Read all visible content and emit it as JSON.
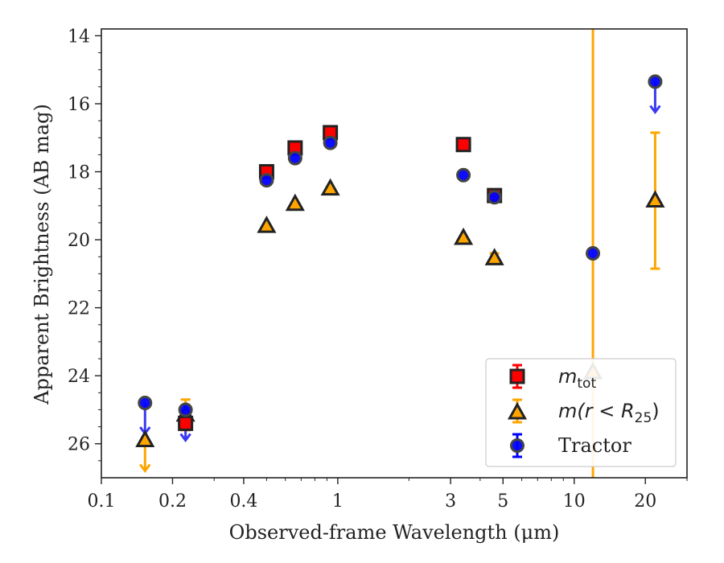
{
  "chart_data": {
    "type": "scatter",
    "xscale": "log",
    "yscale": "linear",
    "yaxis_inverted": true,
    "xlim": [
      0.1,
      30
    ],
    "ylim": [
      27,
      13.8
    ],
    "xlabel": "Observed-frame Wavelength (μm)",
    "ylabel": "Apparent Brightness (AB mag)",
    "x_tick_labels": [
      "0.1",
      "0.2",
      "0.4",
      "1",
      "3",
      "5",
      "10",
      "20"
    ],
    "x_ticks": [
      0.1,
      0.2,
      0.4,
      1,
      3,
      5,
      10,
      20
    ],
    "y_ticks": [
      14,
      16,
      18,
      20,
      22,
      24,
      26
    ],
    "y_tick_labels": [
      "14",
      "16",
      "18",
      "20",
      "22",
      "24",
      "26"
    ],
    "grid": false,
    "legend_position": "lower right",
    "legend": [
      {
        "label": "m_tot",
        "main": "m",
        "sub": "tot",
        "marker": "square",
        "color": "#ff0000"
      },
      {
        "label": "m(r<R_25)",
        "main": "m(r < R",
        "sub": "25",
        "tail": ")",
        "marker": "triangle",
        "color": "#ffa500"
      },
      {
        "label": "Tractor",
        "main": "Tractor",
        "marker": "circle",
        "color": "#0000ff"
      }
    ],
    "series": [
      {
        "name": "m_tot",
        "marker": "square",
        "color": "#ff0000",
        "points": [
          {
            "x": 0.227,
            "y": 25.4
          },
          {
            "x": 0.5,
            "y": 18.0
          },
          {
            "x": 0.66,
            "y": 17.3
          },
          {
            "x": 0.93,
            "y": 16.85
          },
          {
            "x": 3.4,
            "y": 17.2
          },
          {
            "x": 4.6,
            "y": 18.7
          }
        ]
      },
      {
        "name": "m(r<R_25)",
        "marker": "triangle",
        "color": "#ffa500",
        "points": [
          {
            "x": 0.153,
            "y": 25.9,
            "upper_limit": true
          },
          {
            "x": 0.227,
            "y": 25.15,
            "err": 0.45
          },
          {
            "x": 0.5,
            "y": 19.6
          },
          {
            "x": 0.66,
            "y": 18.95
          },
          {
            "x": 0.93,
            "y": 18.5
          },
          {
            "x": 3.4,
            "y": 19.95
          },
          {
            "x": 4.6,
            "y": 20.55,
            "err": 0.15
          },
          {
            "x": 12.0,
            "y": 23.9,
            "err_lo": 30,
            "err_hi": 30
          },
          {
            "x": 22.0,
            "y": 18.85,
            "err": 2.0
          }
        ]
      },
      {
        "name": "Tractor",
        "marker": "circle",
        "color": "#0000ff",
        "points": [
          {
            "x": 0.153,
            "y": 24.8,
            "upper_limit": true
          },
          {
            "x": 0.227,
            "y": 25.0,
            "upper_limit": true
          },
          {
            "x": 0.5,
            "y": 18.25
          },
          {
            "x": 0.66,
            "y": 17.6
          },
          {
            "x": 0.93,
            "y": 17.15
          },
          {
            "x": 3.4,
            "y": 18.1
          },
          {
            "x": 4.6,
            "y": 18.75
          },
          {
            "x": 12.0,
            "y": 20.4
          },
          {
            "x": 22.0,
            "y": 15.35,
            "upper_limit": true
          }
        ]
      }
    ]
  }
}
